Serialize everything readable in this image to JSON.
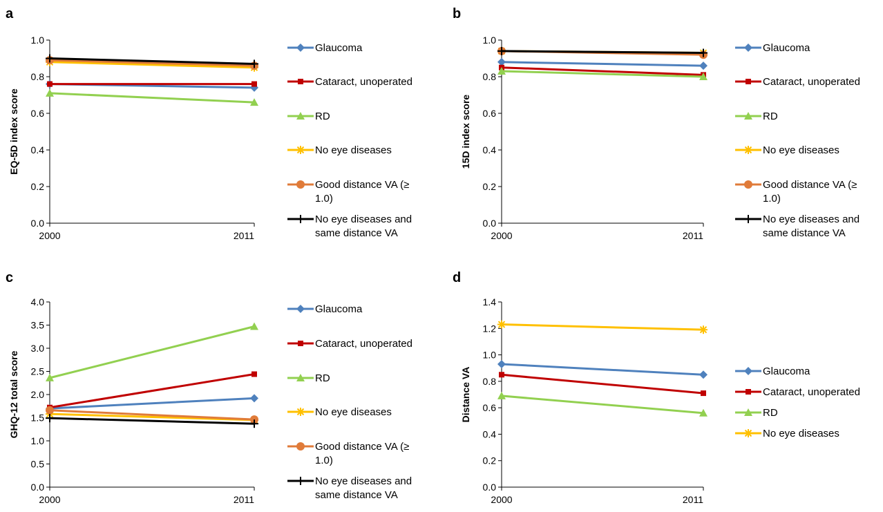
{
  "chart_data": [
    {
      "panel": "a",
      "type": "line",
      "categories": [
        "2000",
        "2011"
      ],
      "ylabel": "EQ-5D index score",
      "ylim": [
        0,
        1.0
      ],
      "yticks": [
        "0.0",
        "0.2",
        "0.4",
        "0.6",
        "0.8",
        "1.0"
      ],
      "series": [
        {
          "name": "Glaucoma",
          "values": [
            0.76,
            0.74
          ],
          "color": "#4F81BD",
          "marker": "diamond"
        },
        {
          "name": "Cataract, unoperated",
          "values": [
            0.76,
            0.76
          ],
          "color": "#C00000",
          "marker": "square"
        },
        {
          "name": "RD",
          "values": [
            0.71,
            0.66
          ],
          "color": "#92D050",
          "marker": "triangle"
        },
        {
          "name": "No eye diseases",
          "values": [
            0.88,
            0.85
          ],
          "color": "#FFC000",
          "marker": "star"
        },
        {
          "name": "Good distance VA (≥ 1.0)",
          "values": [
            0.89,
            0.86
          ],
          "color": "#E07B39",
          "marker": "circle"
        },
        {
          "name": "No eye diseases and same distance VA",
          "values": [
            0.9,
            0.87
          ],
          "color": "#000000",
          "marker": "plus"
        }
      ]
    },
    {
      "panel": "b",
      "type": "line",
      "categories": [
        "2000",
        "2011"
      ],
      "ylabel": "15D index score",
      "ylim": [
        0,
        1.0
      ],
      "yticks": [
        "0.0",
        "0.2",
        "0.4",
        "0.6",
        "0.8",
        "1.0"
      ],
      "series": [
        {
          "name": "Glaucoma",
          "values": [
            0.88,
            0.86
          ],
          "color": "#4F81BD",
          "marker": "diamond"
        },
        {
          "name": "Cataract, unoperated",
          "values": [
            0.85,
            0.81
          ],
          "color": "#C00000",
          "marker": "square"
        },
        {
          "name": "RD",
          "values": [
            0.83,
            0.8
          ],
          "color": "#92D050",
          "marker": "triangle"
        },
        {
          "name": "No eye diseases",
          "values": [
            0.94,
            0.93
          ],
          "color": "#FFC000",
          "marker": "star"
        },
        {
          "name": "Good distance VA (≥ 1.0)",
          "values": [
            0.94,
            0.92
          ],
          "color": "#E07B39",
          "marker": "circle"
        },
        {
          "name": "No eye diseases and same distance VA",
          "values": [
            0.94,
            0.93
          ],
          "color": "#000000",
          "marker": "plus"
        }
      ]
    },
    {
      "panel": "c",
      "type": "line",
      "categories": [
        "2000",
        "2011"
      ],
      "ylabel": "GHQ-12 total score",
      "ylim": [
        0,
        4.0
      ],
      "yticks": [
        "0.0",
        "0.5",
        "1.0",
        "1.5",
        "2.0",
        "2.5",
        "3.0",
        "3.5",
        "4.0"
      ],
      "series": [
        {
          "name": "Glaucoma",
          "values": [
            1.7,
            1.92
          ],
          "color": "#4F81BD",
          "marker": "diamond"
        },
        {
          "name": "Cataract, unoperated",
          "values": [
            1.72,
            2.44
          ],
          "color": "#C00000",
          "marker": "square"
        },
        {
          "name": "RD",
          "values": [
            2.36,
            3.47
          ],
          "color": "#92D050",
          "marker": "triangle"
        },
        {
          "name": "No eye diseases",
          "values": [
            1.58,
            1.45
          ],
          "color": "#FFC000",
          "marker": "star"
        },
        {
          "name": "Good distance VA (≥ 1.0)",
          "values": [
            1.66,
            1.46
          ],
          "color": "#E07B39",
          "marker": "circle"
        },
        {
          "name": "No eye diseases and same distance VA",
          "values": [
            1.49,
            1.37
          ],
          "color": "#000000",
          "marker": "plus"
        }
      ]
    },
    {
      "panel": "d",
      "type": "line",
      "categories": [
        "2000",
        "2011"
      ],
      "ylabel": "Distance VA",
      "ylim": [
        0,
        1.4
      ],
      "yticks": [
        "0.0",
        "0.2",
        "0.4",
        "0.6",
        "0.8",
        "1.0",
        "1.2",
        "1.4"
      ],
      "series": [
        {
          "name": "Glaucoma",
          "values": [
            0.93,
            0.85
          ],
          "color": "#4F81BD",
          "marker": "diamond"
        },
        {
          "name": "Cataract, unoperated",
          "values": [
            0.85,
            0.71
          ],
          "color": "#C00000",
          "marker": "square"
        },
        {
          "name": "RD",
          "values": [
            0.69,
            0.56
          ],
          "color": "#92D050",
          "marker": "triangle"
        },
        {
          "name": "No eye diseases",
          "values": [
            1.23,
            1.19
          ],
          "color": "#FFC000",
          "marker": "star"
        }
      ]
    }
  ]
}
